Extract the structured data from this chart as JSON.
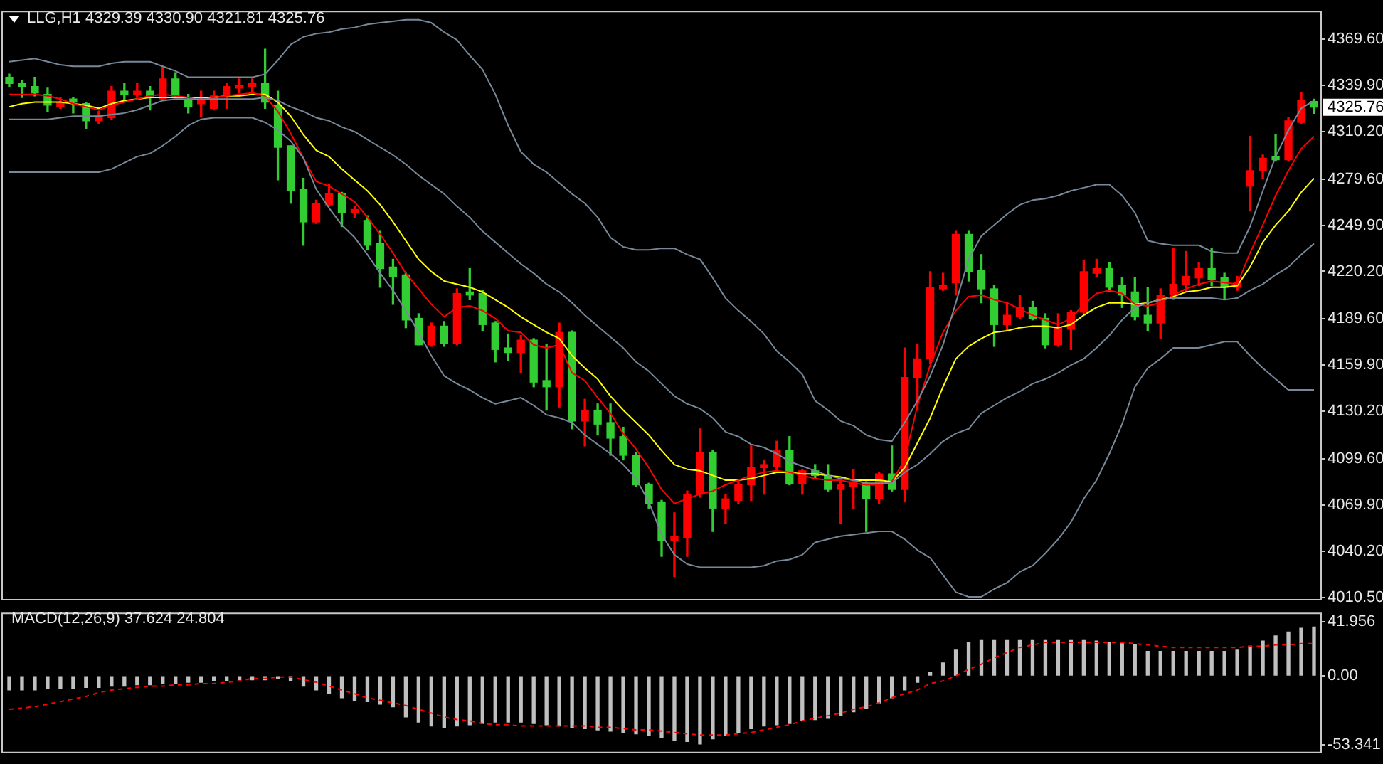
{
  "chart_data": [
    {
      "type": "candlestick",
      "title": "LLG,H1 4329.39 4330.90 4321.81 4325.76",
      "categories": [
        null,
        null,
        null,
        null,
        null,
        null,
        null,
        null,
        null,
        null,
        null,
        null,
        null,
        null,
        null,
        null,
        null,
        null,
        null,
        null,
        null,
        null,
        null,
        null,
        null,
        null,
        null,
        null,
        null,
        null,
        null,
        null,
        null,
        null,
        null,
        null,
        null,
        null,
        null,
        null,
        null,
        null,
        null,
        null,
        null,
        null,
        null,
        null,
        null,
        null,
        null,
        null,
        null,
        null,
        null,
        null,
        null,
        null,
        null,
        null,
        null,
        null,
        null,
        null,
        null,
        null,
        null,
        null,
        null,
        null,
        null,
        null,
        null,
        null,
        null,
        null,
        null,
        null,
        null,
        null,
        null,
        null,
        null,
        null,
        null,
        null,
        null,
        null,
        null,
        null,
        null,
        null,
        null,
        null,
        null,
        null,
        null,
        null,
        null,
        null,
        null,
        null,
        null
      ],
      "ohlc": [
        [
          4345,
          4347,
          4339,
          4341
        ],
        [
          4341,
          4343,
          4332,
          4339
        ],
        [
          4339,
          4345,
          4333,
          4335
        ],
        [
          4334,
          4338,
          4323,
          4327
        ],
        [
          4326,
          4332,
          4325,
          4329
        ],
        [
          4331,
          4332,
          4322,
          4329
        ],
        [
          4328,
          4329,
          4312,
          4317
        ],
        [
          4317,
          4323,
          4315,
          4320
        ],
        [
          4319,
          4339,
          4318,
          4336
        ],
        [
          4336,
          4341,
          4329,
          4334
        ],
        [
          4334,
          4341,
          4332,
          4336
        ],
        [
          4336,
          4339,
          4324,
          4333
        ],
        [
          4331,
          4352,
          4330,
          4344
        ],
        [
          4344,
          4348,
          4332,
          4333
        ],
        [
          4330,
          4334,
          4322,
          4326
        ],
        [
          4328,
          4336,
          4320,
          4330
        ],
        [
          4325,
          4336,
          4324,
          4333
        ],
        [
          4333,
          4341,
          4325,
          4339
        ],
        [
          4338,
          4344,
          4335,
          4340
        ],
        [
          4339,
          4344,
          4335,
          4341
        ],
        [
          4341,
          4363,
          4325,
          4329
        ],
        [
          4327,
          4336,
          4279,
          4300
        ],
        [
          4301,
          4301,
          4264,
          4272
        ],
        [
          4273,
          4280,
          4237,
          4252
        ],
        [
          4252,
          4266,
          4251,
          4264
        ],
        [
          4263,
          4276,
          4262,
          4270
        ],
        [
          4270,
          4271,
          4249,
          4258
        ],
        [
          4258,
          4262,
          4255,
          4260
        ],
        [
          4253,
          4256,
          4234,
          4237
        ],
        [
          4238,
          4246,
          4210,
          4222
        ],
        [
          4223,
          4228,
          4199,
          4217
        ],
        [
          4218,
          4219,
          4184,
          4189
        ],
        [
          4190,
          4193,
          4173,
          4173
        ],
        [
          4173,
          4187,
          4172,
          4185
        ],
        [
          4185,
          4188,
          4172,
          4174
        ],
        [
          4174,
          4209,
          4173,
          4206
        ],
        [
          4207,
          4222,
          4202,
          4205
        ],
        [
          4206,
          4208,
          4182,
          4186
        ],
        [
          4187,
          4188,
          4162,
          4170
        ],
        [
          4171,
          4180,
          4163,
          4168
        ],
        [
          4168,
          4179,
          4155,
          4176
        ],
        [
          4176,
          4177,
          4146,
          4149
        ],
        [
          4150,
          4173,
          4131,
          4146
        ],
        [
          4146,
          4187,
          4133,
          4181
        ],
        [
          4181,
          4182,
          4119,
          4124
        ],
        [
          4124,
          4138,
          4108,
          4131
        ],
        [
          4131,
          4135,
          4115,
          4122
        ],
        [
          4123,
          4135,
          4102,
          4113
        ],
        [
          4114,
          4120,
          4099,
          4102
        ],
        [
          4102,
          4104,
          4082,
          4083
        ],
        [
          4083,
          4084,
          4068,
          4071
        ],
        [
          4072,
          4073,
          4037,
          4047
        ],
        [
          4047,
          4065,
          4024,
          4050
        ],
        [
          4049,
          4079,
          4037,
          4077
        ],
        [
          4077,
          4119,
          4075,
          4104
        ],
        [
          4104,
          4105,
          4053,
          4068
        ],
        [
          4068,
          4077,
          4058,
          4074
        ],
        [
          4073,
          4086,
          4071,
          4083
        ],
        [
          4083,
          4108,
          4073,
          4094
        ],
        [
          4094,
          4099,
          4077,
          4096
        ],
        [
          4095,
          4111,
          4092,
          4105
        ],
        [
          4105,
          4114,
          4083,
          4084
        ],
        [
          4084,
          4093,
          4077,
          4092
        ],
        [
          4092,
          4096,
          4087,
          4089
        ],
        [
          4089,
          4096,
          4079,
          4080
        ],
        [
          4080,
          4087,
          4058,
          4083
        ],
        [
          4082,
          4093,
          4068,
          4085
        ],
        [
          4084,
          4085,
          4053,
          4074
        ],
        [
          4074,
          4091,
          4071,
          4090
        ],
        [
          4090,
          4108,
          4079,
          4080
        ],
        [
          4080,
          4171,
          4072,
          4152
        ],
        [
          4152,
          4173,
          4131,
          4164
        ],
        [
          4164,
          4220,
          4161,
          4210
        ],
        [
          4209,
          4219,
          4208,
          4211
        ],
        [
          4213,
          4246,
          4205,
          4244
        ],
        [
          4244,
          4246,
          4214,
          4220
        ],
        [
          4221,
          4231,
          4200,
          4209
        ],
        [
          4209,
          4211,
          4172,
          4186
        ],
        [
          4186,
          4200,
          4182,
          4192
        ],
        [
          4191,
          4205,
          4190,
          4197
        ],
        [
          4197,
          4201,
          4189,
          4190
        ],
        [
          4190,
          4193,
          4171,
          4173
        ],
        [
          4173,
          4193,
          4172,
          4184
        ],
        [
          4183,
          4195,
          4170,
          4194
        ],
        [
          4194,
          4227,
          4193,
          4220
        ],
        [
          4219,
          4228,
          4217,
          4222
        ],
        [
          4222,
          4226,
          4207,
          4210
        ],
        [
          4211,
          4216,
          4197,
          4205
        ],
        [
          4207,
          4216,
          4189,
          4191
        ],
        [
          4192,
          4210,
          4182,
          4187
        ],
        [
          4187,
          4209,
          4177,
          4205
        ],
        [
          4205,
          4235,
          4202,
          4212
        ],
        [
          4212,
          4233,
          4207,
          4217
        ],
        [
          4216,
          4226,
          4211,
          4222
        ],
        [
          4222,
          4235,
          4211,
          4215
        ],
        [
          4216,
          4219,
          4202,
          4210
        ],
        [
          4210,
          4217,
          4208,
          4213
        ],
        [
          4275,
          4307,
          4259,
          4285
        ],
        [
          4285,
          4295,
          4280,
          4293
        ],
        [
          4294,
          4308,
          4291,
          4292
        ],
        [
          4292,
          4319,
          4291,
          4317
        ],
        [
          4316,
          4335,
          4315,
          4330
        ],
        [
          4329.39,
          4330.9,
          4321.81,
          4325.76
        ]
      ],
      "colors": [
        "#32cd32",
        "#32cd32",
        "#32cd32",
        "#32cd32",
        "#ff0000",
        "#32cd32",
        "#32cd32",
        "#ff0000",
        "#ff0000",
        "#32cd32",
        "#ff0000",
        "#32cd32",
        "#ff0000",
        "#32cd32",
        "#32cd32",
        "#ff0000",
        "#ff0000",
        "#ff0000",
        "#ff0000",
        "#ff0000",
        "#32cd32",
        "#32cd32",
        "#32cd32",
        "#32cd32",
        "#ff0000",
        "#ff0000",
        "#32cd32",
        "#ff0000",
        "#32cd32",
        "#32cd32",
        "#32cd32",
        "#32cd32",
        "#32cd32",
        "#ff0000",
        "#32cd32",
        "#ff0000",
        "#32cd32",
        "#32cd32",
        "#32cd32",
        "#32cd32",
        "#ff0000",
        "#32cd32",
        "#32cd32",
        "#ff0000",
        "#32cd32",
        "#ff0000",
        "#32cd32",
        "#32cd32",
        "#32cd32",
        "#32cd32",
        "#32cd32",
        "#32cd32",
        "#ff0000",
        "#ff0000",
        "#ff0000",
        "#32cd32",
        "#ff0000",
        "#ff0000",
        "#ff0000",
        "#ff0000",
        "#ff0000",
        "#32cd32",
        "#ff0000",
        "#32cd32",
        "#32cd32",
        "#ff0000",
        "#ff0000",
        "#32cd32",
        "#ff0000",
        "#32cd32",
        "#ff0000",
        "#ff0000",
        "#ff0000",
        "#ff0000",
        "#ff0000",
        "#32cd32",
        "#32cd32",
        "#32cd32",
        "#ff0000",
        "#ff0000",
        "#32cd32",
        "#32cd32",
        "#ff0000",
        "#ff0000",
        "#ff0000",
        "#ff0000",
        "#32cd32",
        "#32cd32",
        "#32cd32",
        "#32cd32",
        "#ff0000",
        "#ff0000",
        "#ff0000",
        "#ff0000",
        "#32cd32",
        "#32cd32",
        "#ff0000",
        "#ff0000",
        "#ff0000",
        "#32cd32",
        "#ff0000",
        "#ff0000",
        "#32cd32"
      ],
      "series": [
        {
          "type": "line",
          "color": "#778899",
          "values": [
            4355,
            4356,
            4357,
            4355,
            4353,
            4352,
            4352,
            4352,
            4354,
            4355,
            4355,
            4355,
            4352,
            4349,
            4345,
            4345,
            4345,
            4345,
            4345,
            4345,
            4347,
            4356,
            4366,
            4371,
            4373,
            4374,
            4376,
            4377,
            4379,
            4380,
            4381,
            4382,
            4382,
            4380,
            4374,
            4369,
            4359,
            4350,
            4334,
            4314,
            4297,
            4289,
            4284,
            4277,
            4270,
            4264,
            4255,
            4242,
            4236,
            4234,
            4234,
            4235,
            4235,
            4231,
            4228,
            4216,
            4203,
            4195,
            4188,
            4180,
            4169,
            4162,
            4154,
            4137,
            4131,
            4124,
            4121,
            4115,
            4112,
            4111,
            4123,
            4137,
            4153,
            4173,
            4200,
            4228,
            4243,
            4250,
            4257,
            4263,
            4266,
            4267,
            4269,
            4272,
            4274,
            4276,
            4276,
            4269,
            4258,
            4240,
            4238,
            4237,
            4237,
            4237,
            4233,
            4232,
            4232,
            4249,
            4272,
            4294,
            4311,
            4325,
            4330
          ]
        },
        {
          "type": "line",
          "color": "#778899",
          "values": [
            4318,
            4318,
            4318,
            4318,
            4319,
            4320,
            4320,
            4320,
            4321,
            4322,
            4324,
            4327,
            4330,
            4331,
            4331,
            4331,
            4331,
            4331,
            4331,
            4331,
            4332,
            4330,
            4326,
            4323,
            4319,
            4317,
            4313,
            4310,
            4305,
            4300,
            4295,
            4289,
            4282,
            4276,
            4270,
            4262,
            4255,
            4246,
            4239,
            4232,
            4225,
            4219,
            4212,
            4207,
            4200,
            4192,
            4185,
            4178,
            4171,
            4162,
            4156,
            4148,
            4140,
            4135,
            4132,
            4126,
            4117,
            4114,
            4109,
            4107,
            4103,
            4098,
            4095,
            4092,
            4089,
            4087,
            4086,
            4084,
            4084,
            4084,
            4091,
            4096,
            4103,
            4111,
            4116,
            4119,
            4129,
            4134,
            4139,
            4143,
            4148,
            4151,
            4155,
            4160,
            4164,
            4171,
            4179,
            4189,
            4197,
            4200,
            4202,
            4203,
            4203,
            4203,
            4203,
            4202,
            4203,
            4208,
            4212,
            4218,
            4223,
            4231,
            4238
          ]
        },
        {
          "type": "line",
          "color": "#778899",
          "values": [
            4284,
            4284,
            4284,
            4284,
            4284,
            4284,
            4284,
            4284,
            4286,
            4290,
            4294,
            4296,
            4301,
            4307,
            4314,
            4318,
            4319,
            4319,
            4319,
            4319,
            4316,
            4311,
            4304,
            4293,
            4273,
            4261,
            4250,
            4242,
            4231,
            4219,
            4208,
            4195,
            4181,
            4166,
            4153,
            4148,
            4144,
            4139,
            4135,
            4137,
            4139,
            4134,
            4128,
            4126,
            4123,
            4115,
            4109,
            4103,
            4096,
            4087,
            4072,
            4051,
            4038,
            4032,
            4030,
            4030,
            4030,
            4030,
            4030,
            4031,
            4034,
            4035,
            4038,
            4046,
            4048,
            4050,
            4051,
            4052,
            4053,
            4053,
            4048,
            4041,
            4036,
            4025,
            4014,
            4011,
            4011,
            4016,
            4020,
            4027,
            4031,
            4039,
            4048,
            4059,
            4074,
            4086,
            4103,
            4122,
            4146,
            4158,
            4164,
            4171,
            4171,
            4171,
            4173,
            4175,
            4175,
            4166,
            4158,
            4151,
            4144,
            4144,
            4144
          ]
        },
        {
          "type": "line",
          "color": "#ff0000",
          "values": [
            4334,
            4334,
            4334,
            4333,
            4331,
            4328,
            4326,
            4324,
            4327,
            4329,
            4331,
            4333,
            4334,
            4333,
            4332,
            4330,
            4332,
            4333,
            4334,
            4335,
            4333,
            4323,
            4309,
            4293,
            4278,
            4275,
            4270,
            4265,
            4255,
            4244,
            4232,
            4219,
            4209,
            4199,
            4191,
            4197,
            4198,
            4195,
            4190,
            4182,
            4181,
            4173,
            4171,
            4173,
            4155,
            4150,
            4139,
            4129,
            4116,
            4106,
            4094,
            4080,
            4071,
            4074,
            4077,
            4079,
            4083,
            4086,
            4089,
            4091,
            4092,
            4091,
            4089,
            4087,
            4086,
            4086,
            4084,
            4083,
            4083,
            4085,
            4099,
            4134,
            4160,
            4181,
            4195,
            4204,
            4205,
            4202,
            4200,
            4196,
            4192,
            4189,
            4186,
            4190,
            4199,
            4206,
            4208,
            4206,
            4199,
            4198,
            4200,
            4205,
            4209,
            4212,
            4214,
            4213,
            4212,
            4232,
            4250,
            4269,
            4285,
            4299,
            4307
          ]
        },
        {
          "type": "line",
          "color": "#ffff00",
          "values": [
            4326,
            4328,
            4329,
            4329,
            4329,
            4328,
            4327,
            4325,
            4328,
            4330,
            4331,
            4332,
            4332,
            4332,
            4332,
            4332,
            4332,
            4333,
            4333,
            4334,
            4334,
            4329,
            4320,
            4308,
            4298,
            4294,
            4286,
            4279,
            4272,
            4263,
            4252,
            4240,
            4228,
            4220,
            4214,
            4212,
            4210,
            4207,
            4202,
            4197,
            4191,
            4186,
            4181,
            4177,
            4166,
            4158,
            4151,
            4140,
            4131,
            4123,
            4115,
            4105,
            4096,
            4093,
            4092,
            4089,
            4086,
            4086,
            4087,
            4089,
            4091,
            4091,
            4090,
            4090,
            4089,
            4088,
            4086,
            4086,
            4086,
            4085,
            4094,
            4110,
            4126,
            4146,
            4164,
            4172,
            4177,
            4181,
            4182,
            4184,
            4185,
            4185,
            4184,
            4186,
            4192,
            4197,
            4200,
            4200,
            4199,
            4200,
            4202,
            4204,
            4207,
            4208,
            4210,
            4210,
            4211,
            4223,
            4239,
            4250,
            4259,
            4271,
            4280
          ]
        }
      ],
      "ylim": [
        4009.6,
        4386.8
      ],
      "yticks": [
        {
          "value": 4369.6,
          "label": "4369.60"
        },
        {
          "value": 4339.9,
          "label": "4339.90"
        },
        {
          "value": 4310.2,
          "label": "4310.20"
        },
        {
          "value": 4279.6,
          "label": "4279.60"
        },
        {
          "value": 4249.9,
          "label": "4249.90"
        },
        {
          "value": 4220.2,
          "label": "4220.20"
        },
        {
          "value": 4189.6,
          "label": "4189.60"
        },
        {
          "value": 4159.9,
          "label": "4159.90"
        },
        {
          "value": 4130.2,
          "label": "4130.20"
        },
        {
          "value": 4099.6,
          "label": "4099.60"
        },
        {
          "value": 4069.9,
          "label": "4069.90"
        },
        {
          "value": 4040.2,
          "label": "4040.20"
        },
        {
          "value": 4010.5,
          "label": "4010.50"
        }
      ],
      "tick_labels": "y",
      "marker": "none",
      "annotations": [
        "4325.76"
      ]
    },
    {
      "type": "bar",
      "title": "MACD(12,26,9) 37.624 24.804",
      "categories": [
        null,
        null,
        null,
        null,
        null,
        null,
        null,
        null,
        null,
        null,
        null,
        null,
        null,
        null,
        null,
        null,
        null,
        null,
        null,
        null,
        null,
        null,
        null,
        null,
        null,
        null,
        null,
        null,
        null,
        null,
        null,
        null,
        null,
        null,
        null,
        null,
        null,
        null,
        null,
        null,
        null,
        null,
        null,
        null,
        null,
        null,
        null,
        null,
        null,
        null,
        null,
        null,
        null,
        null,
        null,
        null,
        null,
        null,
        null,
        null,
        null,
        null,
        null,
        null,
        null,
        null,
        null,
        null,
        null,
        null,
        null,
        null,
        null,
        null,
        null,
        null,
        null,
        null,
        null,
        null,
        null,
        null,
        null,
        null,
        null,
        null,
        null,
        null,
        null,
        null,
        null,
        null,
        null,
        null,
        null,
        null,
        null,
        null,
        null,
        null,
        null,
        null,
        null
      ],
      "series": [
        {
          "color": "#c0c0c0",
          "values": [
            -11,
            -11,
            -11,
            -10,
            -10,
            -10,
            -9,
            -9,
            -8,
            -8,
            -7,
            -7,
            -6,
            -6,
            -5,
            -5,
            -4,
            -4,
            -3,
            -3,
            -3,
            -2,
            -4,
            -8,
            -11,
            -14,
            -17,
            -19,
            -20,
            -22,
            -24,
            -32,
            -36,
            -39,
            -40,
            -39,
            -38,
            -37,
            -36,
            -36,
            -36,
            -37,
            -38,
            -39,
            -40,
            -41,
            -42,
            -43,
            -44,
            -45,
            -46,
            -48,
            -50,
            -51,
            -53,
            -49,
            -46,
            -44,
            -41,
            -39,
            -38,
            -37,
            -35,
            -34,
            -33,
            -31,
            -28,
            -25,
            -21,
            -17,
            -11,
            -5,
            3,
            10,
            20,
            26,
            28,
            28,
            28,
            28,
            28,
            28,
            28,
            28,
            28,
            27,
            26,
            25,
            24,
            19,
            19,
            19,
            19,
            19,
            19,
            19,
            20,
            23,
            27,
            31,
            34,
            37,
            38
          ]
        },
        {
          "type": "line",
          "color": "#ff0000",
          "line_style": "dashed",
          "values": [
            -26,
            -25,
            -24,
            -22,
            -20,
            -18,
            -16,
            -13,
            -11,
            -10,
            -9,
            -8,
            -8,
            -7,
            -7,
            -6,
            -6,
            -5,
            -4,
            -2,
            -2,
            -1,
            -1,
            -3,
            -5,
            -8,
            -11,
            -14,
            -17,
            -19,
            -21,
            -23,
            -26,
            -29,
            -32,
            -34,
            -35,
            -37,
            -38,
            -38,
            -39,
            -39,
            -39,
            -39,
            -39,
            -39,
            -40,
            -40,
            -41,
            -42,
            -42,
            -43,
            -44,
            -45,
            -46,
            -46,
            -46,
            -45,
            -44,
            -42,
            -40,
            -38,
            -35,
            -33,
            -31,
            -29,
            -26,
            -24,
            -21,
            -17,
            -14,
            -11,
            -6,
            -4,
            0,
            5,
            9,
            14,
            18,
            22,
            24,
            26,
            26,
            26,
            26,
            26,
            26,
            26,
            25,
            24,
            23,
            22,
            22,
            22,
            22,
            22,
            22,
            23,
            23,
            24,
            24,
            25,
            25
          ]
        }
      ],
      "ylim": [
        -59,
        48
      ],
      "yticks": [
        {
          "value": 41.956,
          "label": "41.956"
        },
        {
          "value": 0,
          "label": "0.00"
        },
        {
          "value": -53.341,
          "label": "-53.341"
        }
      ],
      "tick_labels": "y",
      "marker": "none"
    }
  ]
}
